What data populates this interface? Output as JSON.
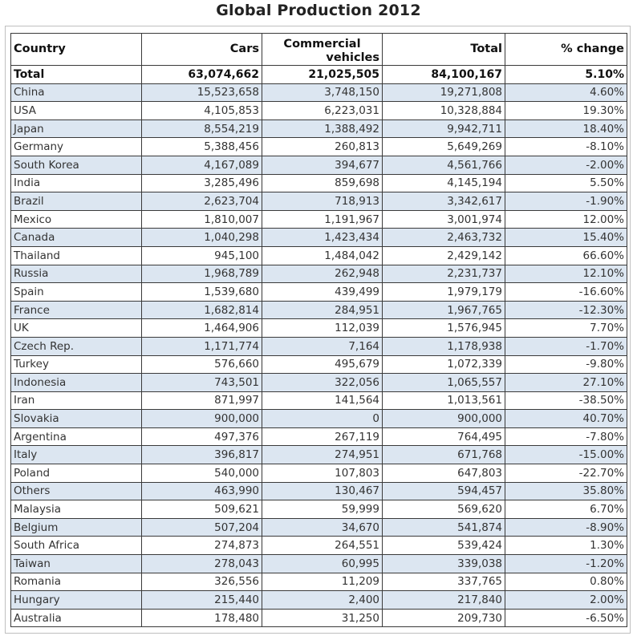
{
  "title": "Global Production 2012",
  "chart_data": {
    "type": "table",
    "title": "Global Production 2012",
    "columns": [
      "Country",
      "Cars",
      "Commercial vehicles",
      "Total",
      "% change"
    ],
    "total_row": [
      "Total",
      "63,074,662",
      "21,025,505",
      "84,100,167",
      "5.10%"
    ],
    "rows": [
      [
        "China",
        "15,523,658",
        "3,748,150",
        "19,271,808",
        "4.60%"
      ],
      [
        "USA",
        "4,105,853",
        "6,223,031",
        "10,328,884",
        "19.30%"
      ],
      [
        "Japan",
        "8,554,219",
        "1,388,492",
        "9,942,711",
        "18.40%"
      ],
      [
        "Germany",
        "5,388,456",
        "260,813",
        "5,649,269",
        "-8.10%"
      ],
      [
        "South Korea",
        "4,167,089",
        "394,677",
        "4,561,766",
        "-2.00%"
      ],
      [
        "India",
        "3,285,496",
        "859,698",
        "4,145,194",
        "5.50%"
      ],
      [
        "Brazil",
        "2,623,704",
        "718,913",
        "3,342,617",
        "-1.90%"
      ],
      [
        "Mexico",
        "1,810,007",
        "1,191,967",
        "3,001,974",
        "12.00%"
      ],
      [
        "Canada",
        "1,040,298",
        "1,423,434",
        "2,463,732",
        "15.40%"
      ],
      [
        "Thailand",
        "945,100",
        "1,484,042",
        "2,429,142",
        "66.60%"
      ],
      [
        "Russia",
        "1,968,789",
        "262,948",
        "2,231,737",
        "12.10%"
      ],
      [
        "Spain",
        "1,539,680",
        "439,499",
        "1,979,179",
        "-16.60%"
      ],
      [
        "France",
        "1,682,814",
        "284,951",
        "1,967,765",
        "-12.30%"
      ],
      [
        "UK",
        "1,464,906",
        "112,039",
        "1,576,945",
        "7.70%"
      ],
      [
        "Czech Rep.",
        "1,171,774",
        "7,164",
        "1,178,938",
        "-1.70%"
      ],
      [
        "Turkey",
        "576,660",
        "495,679",
        "1,072,339",
        "-9.80%"
      ],
      [
        "Indonesia",
        "743,501",
        "322,056",
        "1,065,557",
        "27.10%"
      ],
      [
        "Iran",
        "871,997",
        "141,564",
        "1,013,561",
        "-38.50%"
      ],
      [
        "Slovakia",
        "900,000",
        "0",
        "900,000",
        "40.70%"
      ],
      [
        "Argentina",
        "497,376",
        "267,119",
        "764,495",
        "-7.80%"
      ],
      [
        "Italy",
        "396,817",
        "274,951",
        "671,768",
        "-15.00%"
      ],
      [
        "Poland",
        "540,000",
        "107,803",
        "647,803",
        "-22.70%"
      ],
      [
        "Others",
        "463,990",
        "130,467",
        "594,457",
        "35.80%"
      ],
      [
        "Malaysia",
        "509,621",
        "59,999",
        "569,620",
        "6.70%"
      ],
      [
        "Belgium",
        "507,204",
        "34,670",
        "541,874",
        "-8.90%"
      ],
      [
        "South Africa",
        "274,873",
        "264,551",
        "539,424",
        "1.30%"
      ],
      [
        "Taiwan",
        "278,043",
        "60,995",
        "339,038",
        "-1.20%"
      ],
      [
        "Romania",
        "326,556",
        "11,209",
        "337,765",
        "0.80%"
      ],
      [
        "Hungary",
        "215,440",
        "2,400",
        "217,840",
        "2.00%"
      ],
      [
        "Australia",
        "178,480",
        "31,250",
        "209,730",
        "-6.50%"
      ]
    ],
    "header_lines": {
      "commercial_line1": "Commercial",
      "commercial_line2": "vehicles"
    },
    "colors": {
      "alt_row": "#dce6f1",
      "border": "#3a3a3a"
    }
  }
}
